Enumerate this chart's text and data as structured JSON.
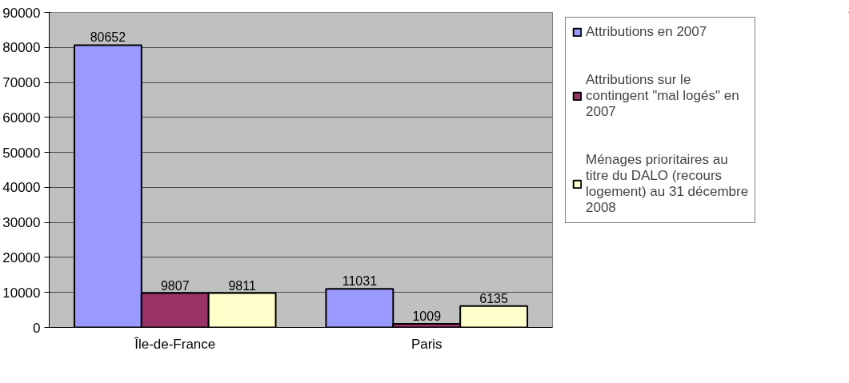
{
  "chart_data": {
    "type": "bar",
    "categories": [
      "Île-de-France",
      "Paris"
    ],
    "series": [
      {
        "name": "Attributions en 2007",
        "color": "#9999ff",
        "values": [
          80652,
          11031
        ]
      },
      {
        "name": "Attributions sur le contingent \"mal logés\" en 2007",
        "color": "#993366",
        "values": [
          9807,
          1009
        ]
      },
      {
        "name": "Ménages prioritaires au titre du DALO (recours logement) au 31 décembre 2008",
        "color": "#ffffcc",
        "values": [
          9811,
          6135
        ]
      }
    ],
    "ylim": [
      0,
      90000
    ],
    "yticks": [
      0,
      10000,
      20000,
      30000,
      40000,
      50000,
      60000,
      70000,
      80000,
      90000
    ],
    "grid": "y",
    "legend": "right",
    "data_labels": true
  }
}
